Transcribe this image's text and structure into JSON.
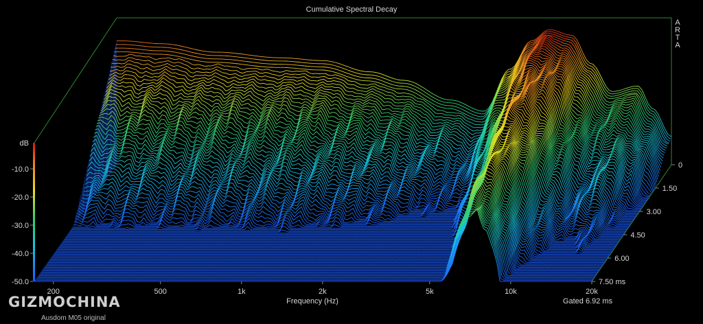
{
  "chart_data": {
    "type": "waterfall",
    "title": "Cumulative Spectral Decay",
    "software_label": "ARTA",
    "xlabel": "Frequency (Hz)",
    "x_scale": "log",
    "xlim": [
      170,
      20000
    ],
    "x_ticks": [
      {
        "value": 200,
        "label": "200"
      },
      {
        "value": 500,
        "label": "500"
      },
      {
        "value": 1000,
        "label": "1k"
      },
      {
        "value": 2000,
        "label": "2k"
      },
      {
        "value": 5000,
        "label": "5k"
      },
      {
        "value": 10000,
        "label": "10k"
      },
      {
        "value": 20000,
        "label": "20k"
      }
    ],
    "ylabel": "dB",
    "ylim": [
      -50,
      0
    ],
    "y_ticks": [
      {
        "value": -10,
        "label": "-10.0"
      },
      {
        "value": -20,
        "label": "-20.0"
      },
      {
        "value": -30,
        "label": "-30.0"
      },
      {
        "value": -40,
        "label": "-40.0"
      },
      {
        "value": -50,
        "label": "-50.0"
      }
    ],
    "z_axis_unit": "ms",
    "zlim": [
      0,
      7.5
    ],
    "z_ticks": [
      {
        "value": 0,
        "label": "0"
      },
      {
        "value": 1.5,
        "label": "1.50"
      },
      {
        "value": 3.0,
        "label": "3.00"
      },
      {
        "value": 4.5,
        "label": "4.50"
      },
      {
        "value": 6.0,
        "label": "6.00"
      },
      {
        "value": 7.5,
        "label": "7.50 ms"
      }
    ],
    "gating_note": "Gated 6.92 ms",
    "slice_count": 100,
    "color_scale": [
      "#1a5cff",
      "#18c4e0",
      "#32d070",
      "#e8e020",
      "#f08020",
      "#e01010"
    ],
    "initial_response": [
      {
        "hz": 180,
        "db": -6
      },
      {
        "hz": 250,
        "db": -7
      },
      {
        "hz": 400,
        "db": -10
      },
      {
        "hz": 700,
        "db": -12
      },
      {
        "hz": 1000,
        "db": -13
      },
      {
        "hz": 1500,
        "db": -17
      },
      {
        "hz": 2000,
        "db": -20
      },
      {
        "hz": 3000,
        "db": -27
      },
      {
        "hz": 4000,
        "db": -31
      },
      {
        "hz": 5000,
        "db": -16
      },
      {
        "hz": 6000,
        "db": -6
      },
      {
        "hz": 7000,
        "db": -2
      },
      {
        "hz": 8500,
        "db": -4
      },
      {
        "hz": 10000,
        "db": -14
      },
      {
        "hz": 12000,
        "db": -24
      },
      {
        "hz": 15000,
        "db": -22
      },
      {
        "hz": 17000,
        "db": -30
      },
      {
        "hz": 20000,
        "db": -40
      }
    ]
  },
  "watermark": {
    "brand": "GIZMOCHINA",
    "caption": "Ausdom M05 original"
  }
}
